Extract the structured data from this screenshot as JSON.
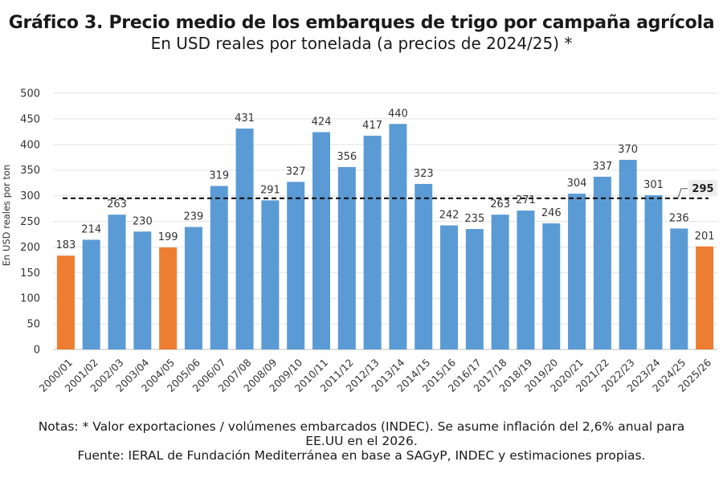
{
  "chart_data": {
    "type": "bar",
    "title": "Gráfico 3. Precio medio de los embarques de trigo por campaña agrícola",
    "subtitle": "En USD reales por tonelada (a precios de 2024/25) *",
    "ylabel": "En USD reales por ton",
    "xlabel": "",
    "ylim": [
      0,
      500
    ],
    "yticks": [
      0,
      50,
      100,
      150,
      200,
      250,
      300,
      350,
      400,
      450,
      500
    ],
    "grid": true,
    "categories": [
      "2000/01",
      "2001/02",
      "2002/03",
      "2003/04",
      "2004/05",
      "2005/06",
      "2006/07",
      "2007/08",
      "2008/09",
      "2009/10",
      "2010/11",
      "2011/12",
      "2012/13",
      "2013/14",
      "2014/15",
      "2015/16",
      "2016/17",
      "2017/18",
      "2018/19",
      "2019/20",
      "2020/21",
      "2021/22",
      "2022/23",
      "2023/24",
      "2024/25",
      "2025/26"
    ],
    "values": [
      183,
      214,
      263,
      230,
      199,
      239,
      319,
      431,
      291,
      327,
      424,
      356,
      417,
      440,
      323,
      242,
      235,
      263,
      271,
      246,
      304,
      337,
      370,
      301,
      236,
      201
    ],
    "highlighted": [
      "2000/01",
      "2004/05",
      "2025/26"
    ],
    "colors": {
      "default": "#5b9bd5",
      "highlight": "#ed7d31"
    },
    "reference_line": {
      "value": 295,
      "label": "295",
      "style": "dashed"
    }
  },
  "notes": {
    "line1": "Notas: * Valor exportaciones / volúmenes embarcados (INDEC). Se asume inflación del 2,6% anual para",
    "line2": "EE.UU en el 2026.",
    "line3": "Fuente: IERAL de Fundación Mediterránea en base a SAGyP, INDEC y estimaciones propias."
  }
}
